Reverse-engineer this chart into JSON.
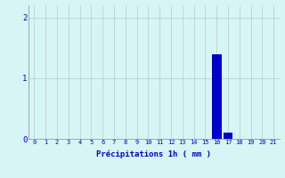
{
  "categories": [
    0,
    1,
    2,
    3,
    4,
    5,
    6,
    7,
    8,
    9,
    10,
    11,
    12,
    13,
    14,
    15,
    16,
    17,
    18,
    19,
    20,
    21
  ],
  "values": [
    0,
    0,
    0,
    0,
    0,
    0,
    0,
    0,
    0,
    0,
    0,
    0,
    0,
    0,
    0,
    0,
    1.4,
    0.1,
    0,
    0,
    0,
    0
  ],
  "bar_color": "#0000cc",
  "background_color": "#d8f5f5",
  "grid_color": "#b8c8c8",
  "xlabel": "Précipitations 1h ( mm )",
  "xlabel_color": "#0000cc",
  "tick_color": "#0000cc",
  "ylim": [
    0,
    2.2
  ],
  "xlim": [
    -0.5,
    21.5
  ],
  "yticks": [
    0,
    1,
    2
  ],
  "bar_width": 0.85
}
